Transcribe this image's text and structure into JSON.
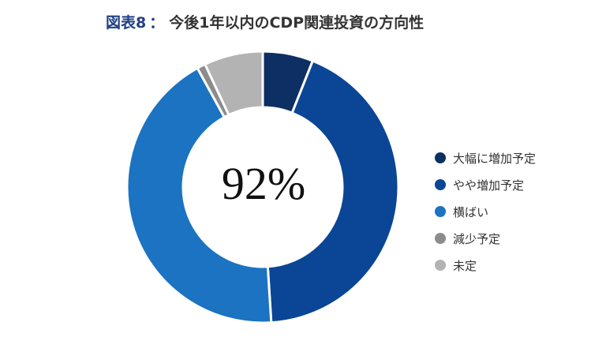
{
  "title": {
    "prefix": "図表8",
    "separator": "：",
    "text": "今後1年以内のCDP関連投資の方向性"
  },
  "center_label": "92%",
  "chart_data": {
    "type": "pie",
    "subtype": "donut",
    "title": "図表8：今後1年以内のCDP関連投資の方向性",
    "center_text": "92%",
    "legend_position": "right",
    "series": [
      {
        "name": "大幅に増加予定",
        "value": 6,
        "color": "#0d2f63"
      },
      {
        "name": "やや増加予定",
        "value": 43,
        "color": "#0b4595"
      },
      {
        "name": "横ばい",
        "value": 43,
        "color": "#1b73c1"
      },
      {
        "name": "減少予定",
        "value": 1,
        "color": "#8c8c8c"
      },
      {
        "name": "未定",
        "value": 7,
        "color": "#b3b3b3"
      }
    ]
  }
}
